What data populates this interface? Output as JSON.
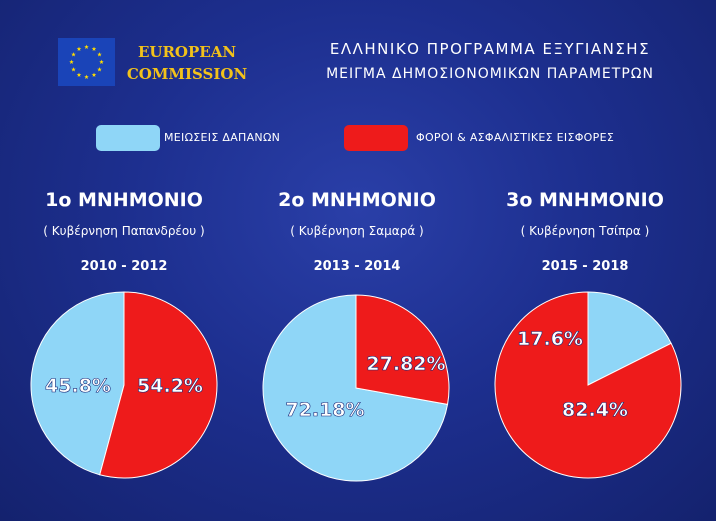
{
  "header": {
    "org_name": "EUROPEAN\nCOMMISSION",
    "title": "ΕΛΛΗΝΙΚΟ  ΠΡΟΓΡΑΜΜΑ  ΕΞΥΓΙΑΝΣΗΣ",
    "subtitle": "ΜΕΙΓΜΑ  ΔΗΜΟΣΙΟΝΟΜΙΚΩΝ  ΠΑΡΑΜΕΤΡΩΝ"
  },
  "icons": {
    "logo": "eu-flag-icon"
  },
  "colors": {
    "spending_cuts": "#8fd6f7",
    "taxes": "#ee1b1b",
    "logo_text": "#f2c21a",
    "background": "#1d2f8f"
  },
  "chart_data": [
    {
      "type": "pie",
      "title": "1ο ΜΝΗΜΟΝΙΟ",
      "subtitle": "( Κυβέρνηση Παπανδρέου )",
      "period": "2010 - 2012",
      "legend": [
        "ΜΕΙΩΣΕΙΣ ΔΑΠΑΝΩΝ",
        "ΦΟΡΟΙ & ΑΣΦΑΛΙΣΤΙΚΕΣ ΕΙΣΦΟΡΕΣ"
      ],
      "slices": [
        {
          "label": "ΜΕΙΩΣΕΙΣ ΔΑΠΑΝΩΝ",
          "value": 45.8,
          "text": "45.8%"
        },
        {
          "label": "ΦΟΡΟΙ & ΑΣΦΑΛΙΣΤΙΚΕΣ ΕΙΣΦΟΡΕΣ",
          "value": 54.2,
          "text": "54.2%"
        }
      ]
    },
    {
      "type": "pie",
      "title": "2ο ΜΝΗΜΟΝΙΟ",
      "subtitle": "( Κυβέρνηση Σαμαρά )",
      "period": "2013 - 2014",
      "slices": [
        {
          "label": "ΜΕΙΩΣΕΙΣ ΔΑΠΑΝΩΝ",
          "value": 72.18,
          "text": "72.18%"
        },
        {
          "label": "ΦΟΡΟΙ & ΑΣΦΑΛΙΣΤΙΚΕΣ ΕΙΣΦΟΡΕΣ",
          "value": 27.82,
          "text": "27.82%"
        }
      ]
    },
    {
      "type": "pie",
      "title": "3ο ΜΝΗΜΟΝΙΟ",
      "subtitle": "( Κυβέρνηση Τσίπρα )",
      "period": "2015 - 2018",
      "slices": [
        {
          "label": "ΜΕΙΩΣΕΙΣ ΔΑΠΑΝΩΝ",
          "value": 17.6,
          "text": "17.6%"
        },
        {
          "label": "ΦΟΡΟΙ & ΑΣΦΑΛΙΣΤΙΚΕΣ ΕΙΣΦΟΡΕΣ",
          "value": 82.4,
          "text": "82.4%"
        }
      ]
    }
  ]
}
